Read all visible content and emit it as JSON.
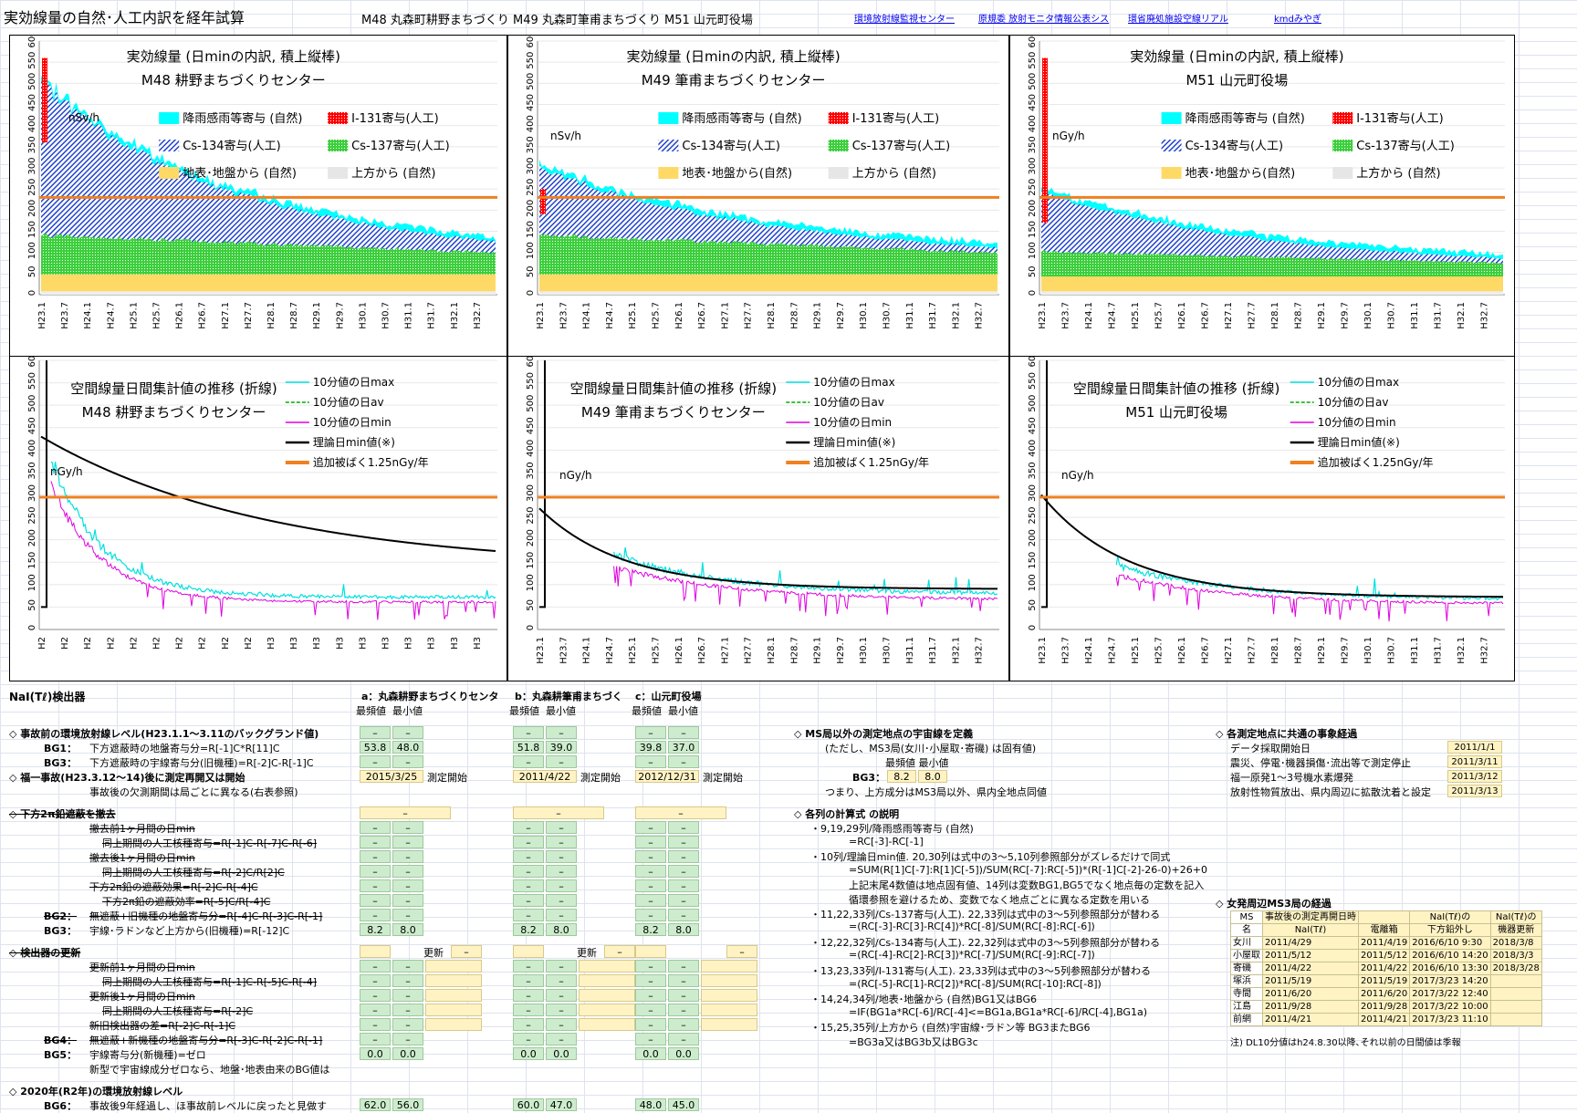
{
  "header": {
    "title": "実効線量の自然･人工内訳を経年試算",
    "subtitle": "M48 丸森町耕野まちづくり M49 丸森町筆甫まちづくり M51 山元町役場",
    "links": [
      "環境放射線監視センター",
      "原規委 放射モニタ情報公表シス",
      "環省廃処施設空線リアル",
      "kmdみやぎ"
    ]
  },
  "colors": {
    "rain": "#00ffff",
    "cs134": "#2244cc",
    "i131": "#ff0000",
    "cs137": "#3ccf3c",
    "ground": "#ffd966",
    "sky": "#dddddd",
    "line_max": "#00e0e0",
    "line_av": "#00aa00",
    "line_min": "#e000e0",
    "theory": "#000000",
    "limit": "#f08020"
  },
  "top_charts": [
    {
      "title1": "実効線量 (日minの内訳, 積上縦棒)",
      "title2": "M48 耕野まちづくりセンター",
      "unit": "nSv/h",
      "leg": [
        "降雨感雨等寄与 (自然)",
        "I-131寄与(人工)",
        "Cs-134寄与(人工)",
        "Cs-137寄与(人工)",
        "地表･地盤から (自然)",
        "上方から (自然)"
      ]
    },
    {
      "title1": "実効線量 (日minの内訳, 積上縦棒)",
      "title2": "M49 筆甫まちづくりセンター",
      "unit": "nSv/h",
      "leg": [
        "降雨感雨等寄与 (自然)",
        "I-131寄与(人工)",
        "Cs-134寄与(人工)",
        "Cs-137寄与(人工)",
        "地表･地盤から(自然)",
        "上方から (自然)"
      ]
    },
    {
      "title1": "実効線量 (日minの内訳, 積上縦棒)",
      "title2": "M51 山元町役場",
      "unit": "nGy/h",
      "leg": [
        "降雨感雨等寄与 (自然)",
        "I-131寄与(人工)",
        "Cs-134寄与(人工)",
        "Cs-137寄与(人工)",
        "地表･地盤から(自然)",
        "上方から (自然)"
      ]
    }
  ],
  "bottom_charts": [
    {
      "title1": "空間線量日間集計値の推移 (折線)",
      "title2": "M48 耕野まちづくりセンター",
      "unit": "nGy/h"
    },
    {
      "title1": "空間線量日間集計値の推移 (折線)",
      "title2": "M49 筆甫まちづくりセンター",
      "unit": "nGy/h"
    },
    {
      "title1": "空間線量日間集計値の推移 (折線)",
      "title2": "M51 山元町役場",
      "unit": "nGy/h"
    }
  ],
  "line_legend": [
    "10分値の日max",
    "10分値の日av",
    "10分値の日min",
    "理論日min値(※)",
    "追加被ばく1.25nGy/年"
  ],
  "x_ticks": [
    "H23.1",
    "H23.7",
    "H24.1",
    "H24.7",
    "H25.1",
    "H25.7",
    "H26.1",
    "H26.7",
    "H27.1",
    "H27.7",
    "H28.1",
    "H28.7",
    "H29.1",
    "H29.7",
    "H30.1",
    "H30.7",
    "H31.1",
    "H31.7",
    "H32.1",
    "H32.7"
  ],
  "x_ticks_h": [
    "H2",
    "H2",
    "H2",
    "H2",
    "H2",
    "H2",
    "H2",
    "H2",
    "H2",
    "H2",
    "H3",
    "H3",
    "H3",
    "H3",
    "H3",
    "H3",
    "H3",
    "H3",
    "H3",
    "H3"
  ],
  "y_ticks": [
    "0",
    "50",
    "100",
    "150",
    "200",
    "250",
    "300",
    "350",
    "400",
    "450",
    "500",
    "550",
    "600"
  ],
  "sheet": {
    "detector": "NaI(Tℓ)検出器",
    "sites": [
      "a：丸森耕野まちづくりセンタ",
      "b：丸森耕筆甫まちづく",
      "c：山元町役場"
    ],
    "colhead": [
      "最頻値",
      "最小値"
    ],
    "s1": "◇ 事故前の環境放射線レベル(H23.1.1～3.11のバックグランド値)",
    "bg1": "BG1：",
    "bg1_t": "下方遮蔽時の地盤寄与分=R[-1]C*R[11]C",
    "bg3": "BG3：",
    "bg3_t": "下方遮蔽時の宇線寄与分(旧機種)=R[-2]C-R[-1]C",
    "s2": "◇ 福一事故(H23.3.12～14)後に測定再開又は開始",
    "s2b": "事故後の欠測期間は局ごとに異なる(右表参照)",
    "start": "測定開始",
    "v": {
      "a": {
        "bg1": [
          "53.8",
          "48.0"
        ],
        "bg3": [
          "–",
          "–"
        ],
        "date": "2015/3/25",
        "bg3b": [
          "8.2",
          "8.0"
        ],
        "bg5": [
          "0.0",
          "0.0"
        ],
        "bg6": [
          "62.0",
          "56.0"
        ]
      },
      "b": {
        "bg1": [
          "51.8",
          "39.0"
        ],
        "bg3": [
          "–",
          "–"
        ],
        "date": "2011/4/22",
        "bg3b": [
          "8.2",
          "8.0"
        ],
        "bg5": [
          "0.0",
          "0.0"
        ],
        "bg6": [
          "60.0",
          "47.0"
        ]
      },
      "c": {
        "bg1": [
          "39.8",
          "37.0"
        ],
        "bg3": [
          "–",
          "–"
        ],
        "date": "2012/12/31",
        "bg3b": [
          "8.2",
          "8.0"
        ],
        "bg5": [
          "0.0",
          "0.0"
        ],
        "bg6": [
          "48.0",
          "45.0"
        ]
      }
    },
    "dash": "–",
    "s3": "◇ 下方2π鉛遮蔽を撤去",
    "s3_rows": [
      "撤去前1ヶ月間の日min",
      "同上期間の人工核種寄与=R[-1]C-R[-7]C-R[-6]",
      "撤去後1ヶ月間の日min",
      "同上期間の人工核種寄与=R[-2]C/R[2]C",
      "下方2π鉛の遮蔽効果=R[-2]C-R[-4]C",
      "下方2π鉛の遮蔽効率=R[-5]C/R[-4]C"
    ],
    "bg2": "BG2：",
    "bg2_t": "無遮蔽+旧機種の地盤寄与分=R[-4]C-R[-3]C-R[-1]",
    "bg3b": "BG3：",
    "bg3b_t": "宇線･ラドンなど上方から(旧機種)=R[-12]C",
    "s4": "◇ 検出器の更新",
    "update": "更新",
    "s4_rows": [
      "更新前1ヶ月間の日min",
      "同上期間の人工核種寄与=R[-1]C-R[-5]C-R[-4]",
      "更新後1ヶ月間の日min",
      "同上期間の人工核種寄与=R[-2]C",
      "新旧検出器の差=R[-2]C-R[-1]C"
    ],
    "bg4": "BG4：",
    "bg4_t": "無遮蔽+新機種の地盤寄与分=R[-3]C-R[-2]C-R[-1]",
    "bg5": "BG5：",
    "bg5_t": "宇線寄与分(新機種)=ゼロ",
    "s4b": "新型で宇宙線成分ゼロなら、地盤･地表由来のBG値は",
    "s5": "◇ 2020年(R2年)の環境放射線レベル",
    "bg6": "BG6：",
    "bg6_t": "事故後9年経過し、ほ事故前レベルに戻ったと見做す",
    "m1": "◇ MS局以外の測定地点の宇宙線を定義",
    "m1b": "(ただし、MS3局(女川･小屋取･寄磯) は固有値)",
    "m1c": "最頻値 最小値",
    "m1d": "BG3：",
    "m1v": [
      "8.2",
      "8.0"
    ],
    "m1e": "つまり、上方成分はMS3局以外、県内全地点同値",
    "m2": "◇ 各列の計算式 の説明",
    "f": [
      "・9,19,29列/降雨感雨等寄与 (自然)",
      "=RC[-3]-RC[-1]",
      "・10列/理論日min値. 20,30列は式中の3～5,10列参照部分がズレるだけで同式",
      "=SUM(R[1]C[-7]:R[1]C[-5])/SUM(RC[-7]:RC[-5])*(R[-1]C[-2]-26-0)+26+0",
      "上記末尾4数値は地点固有値、14列は変数BG1,BG5でなく地点毎の定数を記入",
      "循環参照を避けるため、変数でなく地点ごとに異なる定数を用いる",
      "・11,22,33列/Cs-137寄与(人工). 22,33列は式中の3～5列参照部分が替わる",
      "=(RC[-3]-RC[3]-RC[4])*RC[-8]/SUM(RC[-8]:RC[-6])",
      "・12,22,32列/Cs-134寄与(人工). 22,32列は式中の3～5列参照部分が替わる",
      "=(RC[-4]-RC[2]-RC[3])*RC[-7]/SUM(RC[-9]:RC[-7])",
      "・13,23,33列/I-131寄与(人工). 23,33列は式中の3～5列参照部分が替わる",
      "=(RC[-5]-RC[1]-RC[2])*RC[-8]/SUM(RC[-10]:RC[-8])",
      "・14,24,34列/地表･地盤から (自然)BG1又はBG6",
      "=IF(BG1a*RC[-6]/RC[-4]<=BG1a,BG1a*RC[-6]/RC[-4],BG1a)",
      "・15,25,35列/上方から (自然)宇宙線･ラドン等 BG3またBG6",
      "=BG3a又はBG3b又はBG3c"
    ],
    "e1": "◇ 各測定地点に共通の事象経過",
    "ev": [
      [
        "データ採取開始日",
        "2011/1/1"
      ],
      [
        "震災、停電･機器損傷･流出等で測定停止",
        "2011/3/11"
      ],
      [
        "福一原発1～3号機水素爆発",
        "2011/3/12"
      ],
      [
        "放射性物質放出、県内周辺に拡散沈着と設定",
        "2011/3/13"
      ]
    ],
    "e2": "◇ 女発周辺MS3局の経過",
    "ms_head1": [
      "MS",
      "事故後の測定再開日時",
      "",
      "NaI(Tℓ)の",
      "NaI(Tℓ)の"
    ],
    "ms_head2": [
      "名",
      "NaI(Tℓ)",
      "電離箱",
      "下方鉛外し",
      "機器更新"
    ],
    "ms_rows": [
      [
        "女川",
        "2011/4/29",
        "2011/4/19",
        "2016/6/10 9:30",
        "2018/3/8"
      ],
      [
        "小屋取",
        "2011/5/12",
        "2011/5/12",
        "2016/6/10 14:20",
        "2018/3/3"
      ],
      [
        "寄磯",
        "2011/4/22",
        "2011/4/22",
        "2016/6/10 13:30",
        "2018/3/28"
      ],
      [
        "塚浜",
        "2011/5/19",
        "2011/5/19",
        "2017/3/23 14:20",
        ""
      ],
      [
        "寺間",
        "2011/6/20",
        "2011/6/20",
        "2017/3/22 12:40",
        ""
      ],
      [
        "江島",
        "2011/9/28",
        "2011/9/28",
        "2017/3/22 10:00",
        ""
      ],
      [
        "前網",
        "2011/4/21",
        "2011/4/21",
        "2017/3/23 11:10",
        ""
      ]
    ],
    "note": "注) DL10分値はh24.8.30以降､それ以前の日間値は季報"
  }
}
